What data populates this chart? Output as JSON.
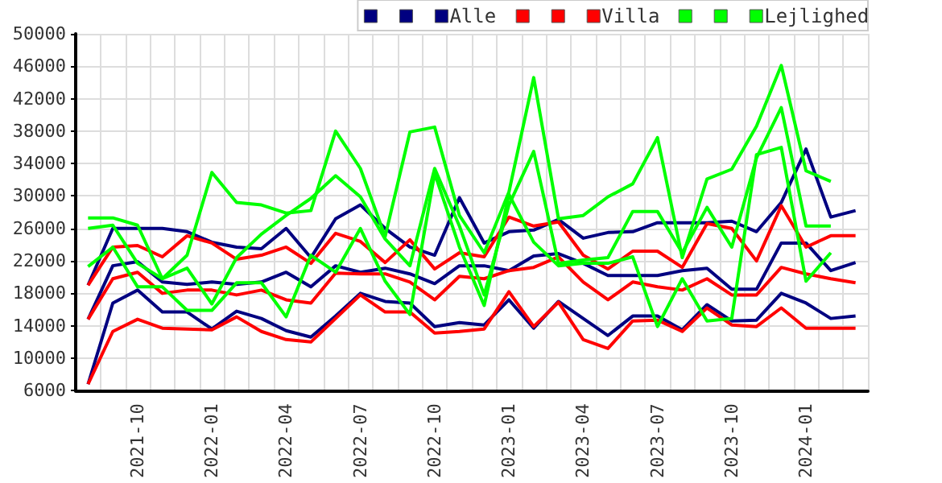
{
  "chart_data": {
    "type": "line",
    "categories": [
      null,
      null,
      "2021-10",
      null,
      null,
      "2022-01",
      null,
      null,
      "2022-04",
      null,
      null,
      "2022-07",
      null,
      null,
      "2022-10",
      null,
      null,
      "2023-01",
      null,
      null,
      "2023-04",
      null,
      null,
      "2023-07",
      null,
      null,
      "2023-10",
      null,
      null,
      "2024-01",
      null,
      null
    ],
    "series": [
      {
        "color": "#000080",
        "values": [
          19000,
          26000,
          26000,
          26000,
          25600,
          24300,
          23700,
          23500,
          26000,
          22400,
          27200,
          28900,
          26000,
          23700,
          22700,
          29800,
          24200,
          25600,
          25800,
          27100,
          24800,
          25500,
          25600,
          26700,
          26700,
          26700,
          26900,
          25600,
          29200,
          35800,
          27400,
          28200
        ]
      },
      {
        "color": "#000080",
        "values": [
          14800,
          21400,
          21900,
          19400,
          19100,
          19400,
          19100,
          19400,
          20600,
          18800,
          21400,
          20600,
          21100,
          20400,
          19200,
          21400,
          21400,
          20800,
          22600,
          22900,
          21700,
          20200,
          20200,
          20200,
          20800,
          21100,
          18500,
          18500,
          24200,
          24200,
          20800,
          21800
        ]
      },
      {
        "name": "Alle",
        "color": "#000080",
        "values": [
          6800,
          16800,
          18400,
          15700,
          15700,
          13600,
          15800,
          14900,
          13400,
          12600,
          15200,
          18000,
          17000,
          16800,
          13900,
          14400,
          14100,
          17200,
          13700,
          17000,
          14900,
          12800,
          15200,
          15200,
          13500,
          16600,
          14600,
          14700,
          18000,
          16800,
          14900,
          15200
        ]
      },
      {
        "color": "#ff0000",
        "values": [
          19000,
          23700,
          23900,
          22500,
          25100,
          24200,
          22200,
          22700,
          23700,
          21700,
          25400,
          24400,
          21800,
          24600,
          21000,
          23000,
          22500,
          27400,
          26300,
          26800,
          22700,
          21000,
          23200,
          23200,
          21200,
          26600,
          26000,
          22000,
          28800,
          23700,
          25100,
          25100
        ]
      },
      {
        "color": "#ff0000",
        "values": [
          14800,
          19800,
          20600,
          18000,
          18400,
          18400,
          17800,
          18400,
          17200,
          16800,
          20500,
          20400,
          20400,
          19400,
          17200,
          20100,
          19800,
          20800,
          21200,
          22500,
          19400,
          17200,
          19400,
          18800,
          18400,
          19800,
          17800,
          17800,
          21200,
          20400,
          19800,
          19300
        ]
      },
      {
        "name": "Villa",
        "color": "#ff0000",
        "values": [
          6800,
          13300,
          14800,
          13700,
          13600,
          13500,
          15100,
          13300,
          12300,
          12000,
          14900,
          17800,
          15700,
          15700,
          13100,
          13300,
          13600,
          18200,
          13900,
          16900,
          12300,
          11200,
          14600,
          14700,
          13300,
          16200,
          14100,
          13900,
          16200,
          13700,
          13700,
          13700
        ]
      },
      {
        "color": "#00ff00",
        "values": [
          27300,
          27300,
          26400,
          19800,
          22700,
          32900,
          29200,
          28900,
          27900,
          28200,
          38000,
          33400,
          25000,
          37900,
          38500,
          27600,
          23000,
          30500,
          44600,
          27200,
          27600,
          29900,
          31500,
          37200,
          22400,
          32100,
          33300,
          38600,
          46100,
          33100,
          31800,
          null
        ]
      },
      {
        "color": "#00ff00",
        "values": [
          26000,
          26400,
          21700,
          19800,
          21100,
          16700,
          22400,
          25300,
          27600,
          29700,
          32500,
          29900,
          24700,
          21400,
          33400,
          26300,
          17800,
          28900,
          35500,
          21700,
          22100,
          22400,
          28100,
          28100,
          23000,
          28600,
          23700,
          34700,
          40900,
          26300,
          26300,
          null
        ]
      },
      {
        "name": "Lejlighed",
        "color": "#00ff00",
        "values": [
          21300,
          23700,
          18800,
          18800,
          15900,
          15900,
          19300,
          19300,
          15100,
          22700,
          20600,
          26000,
          19500,
          15400,
          32800,
          23700,
          16500,
          30200,
          24300,
          21400,
          21700,
          21700,
          22500,
          13900,
          19800,
          14600,
          14900,
          35100,
          36000,
          19500,
          23000,
          null
        ]
      }
    ],
    "ylim": [
      6000,
      50000
    ],
    "yticks": [
      6000,
      10000,
      14000,
      18000,
      22000,
      26000,
      30000,
      34000,
      38000,
      42000,
      46000,
      50000
    ],
    "grid": true,
    "legend": "top right",
    "marker": "none",
    "line_style": "solid"
  }
}
